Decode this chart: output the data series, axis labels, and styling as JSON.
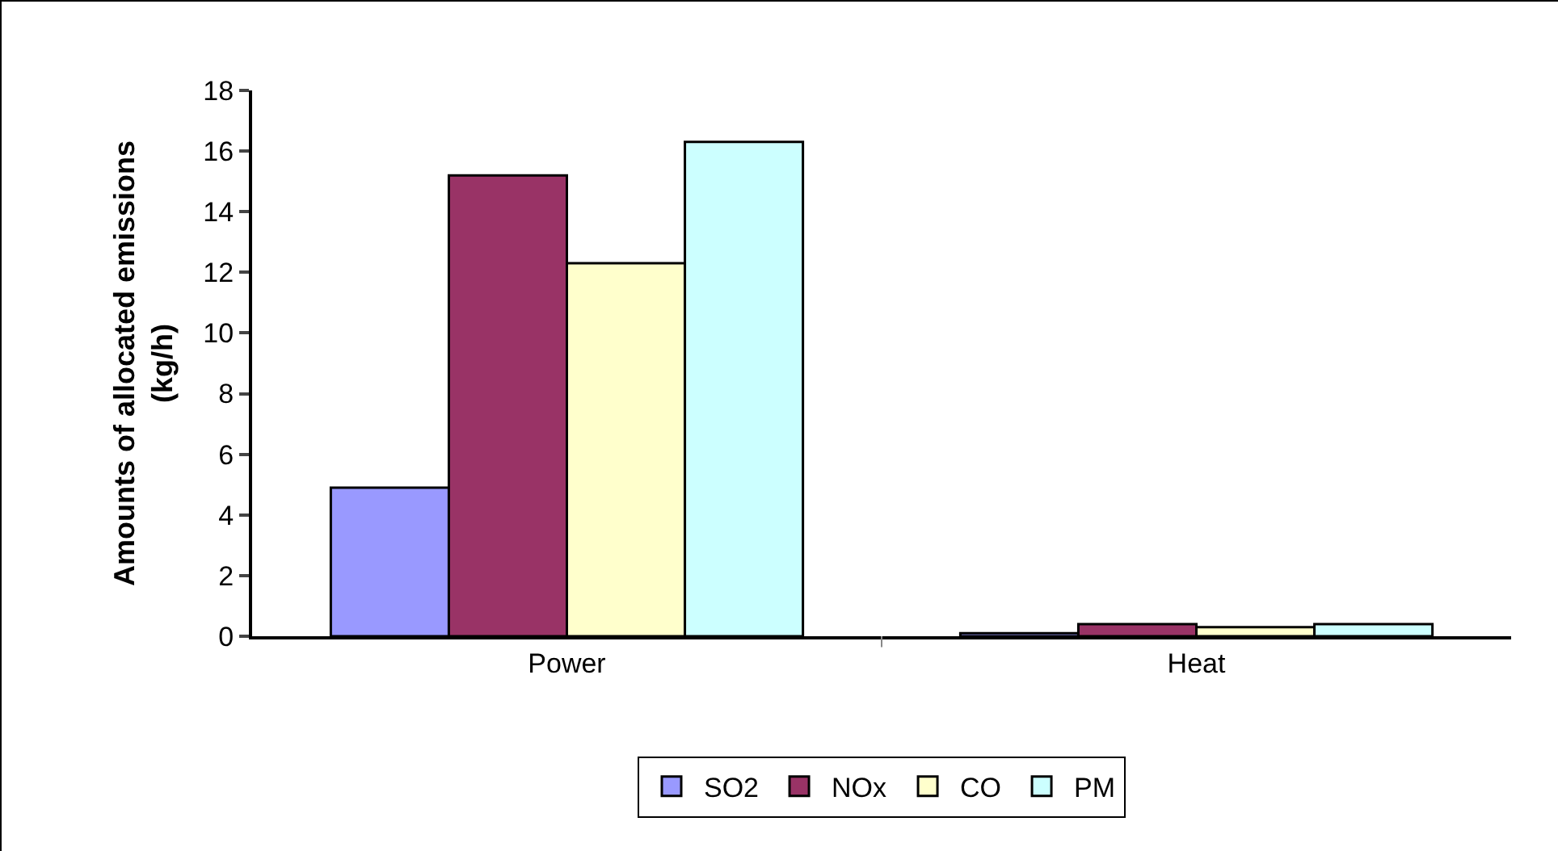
{
  "chart_data": {
    "type": "bar",
    "ylabel": "Amounts of allocated emissions (kg/h)",
    "categories": [
      "Power",
      "Heat"
    ],
    "series": [
      {
        "name": "SO2",
        "color": "#9999ff",
        "values": [
          4.9,
          0.1
        ]
      },
      {
        "name": "NOx",
        "color": "#993366",
        "values": [
          15.2,
          0.4
        ]
      },
      {
        "name": "CO",
        "color": "#ffffcc",
        "values": [
          12.3,
          0.3
        ]
      },
      {
        "name": "PM",
        "color": "#ccffff",
        "values": [
          16.3,
          0.4
        ]
      }
    ],
    "ylim": [
      0,
      18
    ],
    "yticks": [
      0,
      2,
      4,
      6,
      8,
      10,
      12,
      14,
      16,
      18
    ],
    "grid": false,
    "legend": "bottom"
  }
}
